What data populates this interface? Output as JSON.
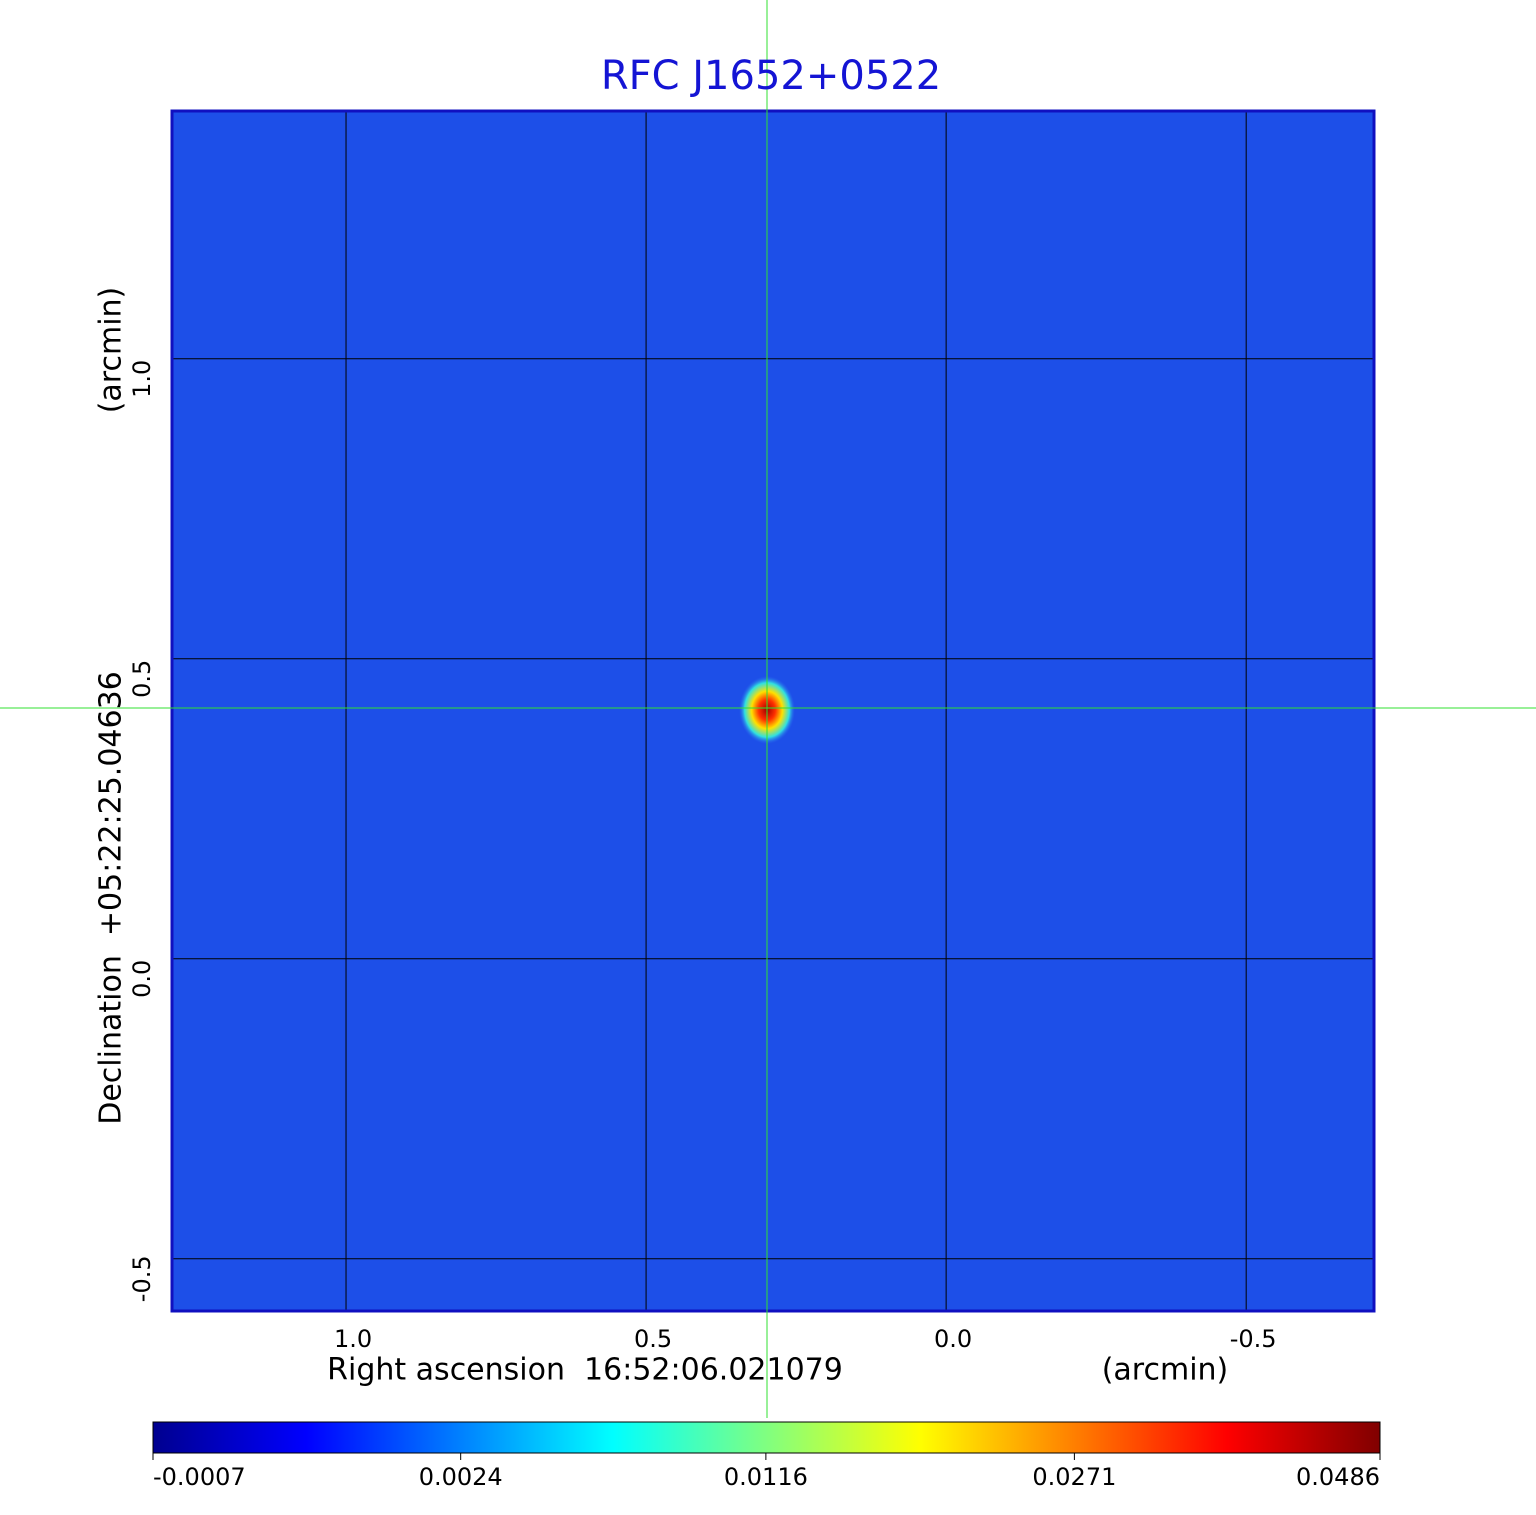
{
  "chart_data": {
    "type": "image",
    "title": "RFC J1652+0522",
    "xlabel": "Right ascension  16:52:06.021079",
    "xunit": "(arcmin)",
    "ylabel": "Declination  +05:22:25.04636",
    "yunit": "(arcmin)",
    "xlim": [
      1.29,
      -0.713
    ],
    "ylim": [
      -0.587,
      1.413
    ],
    "xticks": [
      {
        "value": 1,
        "label": "1.0"
      },
      0.5,
      {
        "value": 0,
        "label": "0.0"
      },
      -0.5
    ],
    "yticks": [
      {
        "value": -0.5,
        "label": "-0.5"
      },
      {
        "value": 0,
        "label": "0.0"
      },
      0.5,
      {
        "value": 1,
        "label": "1.0"
      }
    ],
    "grid": true,
    "colorbar": {
      "clim": [
        -0.0007,
        0.0486
      ],
      "scale": "sqrt",
      "ticks": [
        -0.0007,
        0.0024,
        0.0116,
        0.0271,
        0.0486
      ],
      "colors": [
        "#00008f",
        "#0000ff",
        "#0080ff",
        "#00ffff",
        "#80ff80",
        "#ffff00",
        "#ff8000",
        "#ff0000",
        "#800000"
      ]
    }
  }
}
